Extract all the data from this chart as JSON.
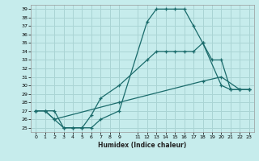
{
  "xlabel": "Humidex (Indice chaleur)",
  "bg_color": "#c6ecec",
  "grid_color": "#aad4d4",
  "line_color": "#1a6b6b",
  "xlim": [
    -0.5,
    23.5
  ],
  "ylim": [
    24.5,
    39.5
  ],
  "xticks": [
    0,
    1,
    2,
    3,
    4,
    5,
    6,
    7,
    8,
    9,
    11,
    12,
    13,
    14,
    15,
    16,
    17,
    18,
    19,
    20,
    21,
    22,
    23
  ],
  "xtick_labels": [
    "0",
    "1",
    "2",
    "3",
    "4",
    "5",
    "6",
    "7",
    "8",
    "9",
    "11",
    "12",
    "13",
    "14",
    "15",
    "16",
    "17",
    "18",
    "19",
    "20",
    "21",
    "22",
    "23"
  ],
  "yticks": [
    25,
    26,
    27,
    28,
    29,
    30,
    31,
    32,
    33,
    34,
    35,
    36,
    37,
    38,
    39
  ],
  "line1_x": [
    0,
    1,
    2,
    3,
    4,
    5,
    6,
    7,
    9,
    12,
    13,
    14,
    15,
    16,
    17,
    18,
    20,
    21,
    22,
    23
  ],
  "line1_y": [
    27,
    27,
    27,
    25,
    25,
    25,
    25,
    26,
    27,
    37.5,
    39,
    39,
    39,
    39,
    37,
    35,
    30,
    29.5,
    29.5,
    29.5
  ],
  "line2_x": [
    0,
    1,
    2,
    3,
    4,
    5,
    6,
    7,
    9,
    12,
    13,
    14,
    15,
    16,
    17,
    18,
    19,
    20,
    21,
    22,
    23
  ],
  "line2_y": [
    27,
    27,
    26,
    25,
    25,
    25,
    26.5,
    28.5,
    30,
    33,
    34,
    34,
    34,
    34,
    34,
    35,
    33,
    33,
    29.5,
    29.5,
    29.5
  ],
  "line3_x": [
    0,
    1,
    2,
    9,
    18,
    20,
    22,
    23
  ],
  "line3_y": [
    27,
    27,
    26,
    28,
    30.5,
    31,
    29.5,
    29.5
  ]
}
